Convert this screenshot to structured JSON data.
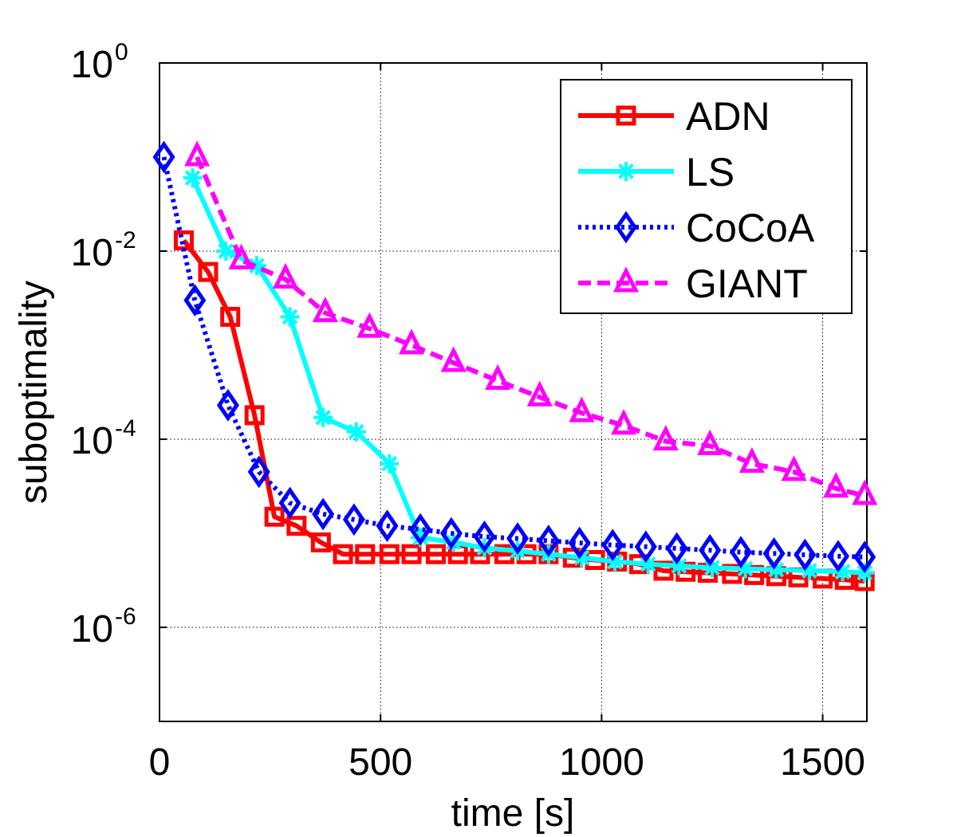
{
  "chart_data": {
    "type": "line",
    "title": "",
    "xlabel": "time [s]",
    "ylabel": "suboptimality",
    "xlim": [
      0,
      1600
    ],
    "ylim_log10": [
      -7,
      0
    ],
    "y_scale": "log",
    "grid": true,
    "legend_position": "top-right",
    "x_ticks": [
      {
        "value": 0,
        "label": "0"
      },
      {
        "value": 500,
        "label": "500"
      },
      {
        "value": 1000,
        "label": "1000"
      },
      {
        "value": 1500,
        "label": "1500"
      }
    ],
    "y_ticks": [
      {
        "value": 0,
        "base": "10",
        "exp": "0"
      },
      {
        "value": -2,
        "base": "10",
        "exp": "-2"
      },
      {
        "value": -4,
        "base": "10",
        "exp": "-4"
      },
      {
        "value": -6,
        "base": "10",
        "exp": "-6"
      }
    ],
    "series": [
      {
        "name": "ADN",
        "color": "#ff0000",
        "dash": "solid",
        "marker": "square",
        "x": [
          55,
          110,
          160,
          215,
          260,
          310,
          365,
          415,
          465,
          520,
          570,
          625,
          675,
          725,
          780,
          830,
          880,
          935,
          985,
          1035,
          1085,
          1140,
          1190,
          1240,
          1295,
          1345,
          1395,
          1445,
          1500,
          1550,
          1595
        ],
        "y": [
          0.013,
          0.006,
          0.002,
          0.00018,
          1.5e-05,
          1.2e-05,
          8e-06,
          6e-06,
          6e-06,
          6e-06,
          6e-06,
          6e-06,
          6e-06,
          6e-06,
          6e-06,
          6e-06,
          6e-06,
          5.5e-06,
          5.2e-06,
          5e-06,
          4.7e-06,
          4e-06,
          3.9e-06,
          3.8e-06,
          3.7e-06,
          3.6e-06,
          3.5e-06,
          3.4e-06,
          3.3e-06,
          3.2e-06,
          3.1e-06
        ]
      },
      {
        "name": "LS",
        "color": "#00ffff",
        "dash": "solid",
        "marker": "asterisk",
        "x": [
          75,
          150,
          220,
          295,
          370,
          445,
          520,
          590,
          665,
          735,
          810,
          880,
          955,
          1030,
          1105,
          1175,
          1250,
          1325,
          1395,
          1470,
          1545,
          1595
        ],
        "y": [
          0.06,
          0.01,
          0.007,
          0.002,
          0.00017,
          0.00012,
          5.5e-05,
          9e-06,
          8e-06,
          7e-06,
          6.5e-06,
          6e-06,
          5.5e-06,
          5e-06,
          4.7e-06,
          4.5e-06,
          4.3e-06,
          4.2e-06,
          4.1e-06,
          4e-06,
          3.9e-06,
          3.8e-06
        ]
      },
      {
        "name": "CoCoA",
        "color": "#0000ff",
        "dash": "dotted",
        "marker": "diamond",
        "x": [
          10,
          80,
          155,
          225,
          295,
          370,
          440,
          515,
          590,
          660,
          735,
          810,
          880,
          950,
          1025,
          1100,
          1170,
          1245,
          1315,
          1390,
          1460,
          1535,
          1595
        ],
        "y": [
          0.1,
          0.003,
          0.00023,
          4.5e-05,
          2.1e-05,
          1.6e-05,
          1.4e-05,
          1.2e-05,
          1.1e-05,
          1e-05,
          9.2e-06,
          8.8e-06,
          8.3e-06,
          7.9e-06,
          7.5e-06,
          7.2e-06,
          6.9e-06,
          6.6e-06,
          6.3e-06,
          6.1e-06,
          5.9e-06,
          5.7e-06,
          5.6e-06
        ]
      },
      {
        "name": "GIANT",
        "color": "#ff00ff",
        "dash": "dashed",
        "marker": "triangle",
        "x": [
          85,
          185,
          285,
          375,
          475,
          570,
          665,
          765,
          860,
          955,
          1050,
          1145,
          1245,
          1340,
          1435,
          1530,
          1595
        ],
        "y": [
          0.1,
          0.008,
          0.005,
          0.0022,
          0.0015,
          0.001,
          0.00065,
          0.00042,
          0.00028,
          0.00019,
          0.00014,
          9.5e-05,
          8.5e-05,
          5.5e-05,
          4.5e-05,
          3e-05,
          2.5e-05
        ]
      }
    ]
  }
}
